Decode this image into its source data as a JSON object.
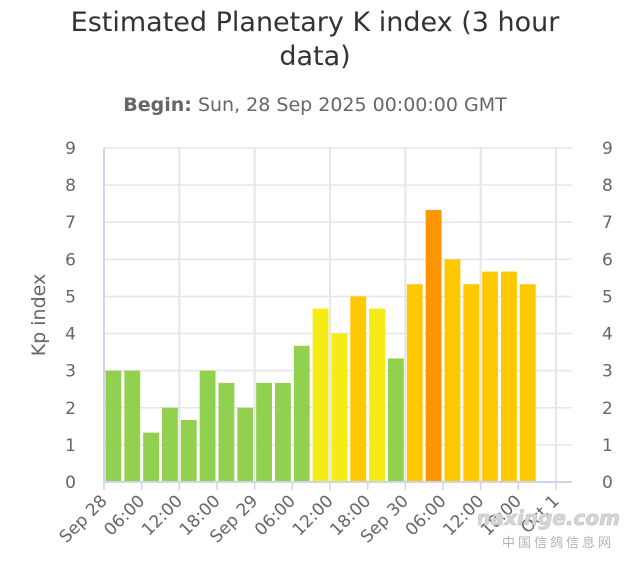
{
  "chart_data": {
    "type": "bar",
    "title_line1": "Estimated Planetary K index (3 hour",
    "title_line2": "data)",
    "subtitle_label": "Begin:",
    "subtitle_value": "Sun, 28 Sep 2025 00:00:00 GMT",
    "ylabel": "Kp index",
    "ylim": [
      0,
      9
    ],
    "yticks": [
      0,
      1,
      2,
      3,
      4,
      5,
      6,
      7,
      8,
      9
    ],
    "xlim": [
      0,
      72
    ],
    "xticks": [
      {
        "x": 0,
        "label": "Sep 28"
      },
      {
        "x": 6,
        "label": "06:00"
      },
      {
        "x": 12,
        "label": "12:00"
      },
      {
        "x": 18,
        "label": "18:00"
      },
      {
        "x": 24,
        "label": "Sep 29"
      },
      {
        "x": 30,
        "label": "06:00"
      },
      {
        "x": 36,
        "label": "12:00"
      },
      {
        "x": 42,
        "label": "18:00"
      },
      {
        "x": 48,
        "label": "Sep 30"
      },
      {
        "x": 54,
        "label": "06:00"
      },
      {
        "x": 60,
        "label": "12:00"
      },
      {
        "x": 66,
        "label": "18:00"
      },
      {
        "x": 72,
        "label": "Oct 1"
      }
    ],
    "bar_hours": [
      0,
      3,
      6,
      9,
      12,
      15,
      18,
      21,
      24,
      27,
      30,
      33,
      36,
      39,
      42,
      45,
      48,
      51,
      54,
      57,
      60,
      63,
      66,
      69
    ],
    "values": [
      3.0,
      3.0,
      1.33,
      2.0,
      1.67,
      3.0,
      2.67,
      2.0,
      2.67,
      2.67,
      3.67,
      4.67,
      4.0,
      5.0,
      4.67,
      3.33,
      5.33,
      7.33,
      6.0,
      5.33,
      5.67,
      5.67,
      5.33,
      null
    ],
    "colors": {
      "below_4": "#92d050",
      "kp_4_to_5": "#f6eb14",
      "kp_5_to_6": "#ffc800",
      "kp_6_to_7": "#ffc800",
      "kp_7_to_8": "#ff9600",
      "grid": "#e6e6e6",
      "tick_text": "#666666"
    },
    "grid": true,
    "legend": "none"
  },
  "watermark": {
    "text": "Chinaxinge.com",
    "subtext": "中国信鸽信息网"
  }
}
